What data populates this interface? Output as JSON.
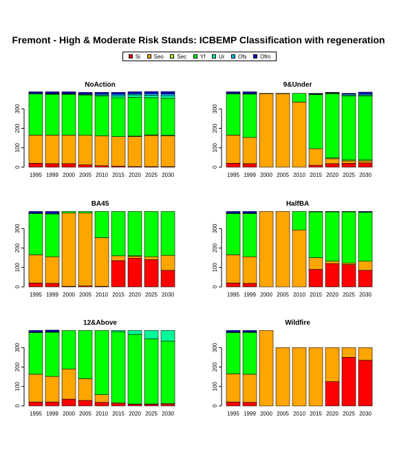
{
  "title": "Fremont  - High & Moderate Risk Stands: ICBEMP Classification with regeneration",
  "legend": [
    {
      "label": "Si",
      "color": "#ff0000"
    },
    {
      "label": "Seo",
      "color": "#ffa500"
    },
    {
      "label": "Sec",
      "color": "#adff2f"
    },
    {
      "label": "Yf",
      "color": "#00ff00"
    },
    {
      "label": "Ur",
      "color": "#00fa9a"
    },
    {
      "label": "Ofs",
      "color": "#00bfff"
    },
    {
      "label": "Ofm",
      "color": "#0000cd"
    }
  ],
  "chart_data": [
    {
      "type": "bar",
      "stacked": true,
      "title": "NoAction",
      "categories": [
        "1995",
        "1999",
        "2000",
        "2005",
        "2010",
        "2015",
        "2020",
        "2025",
        "2030"
      ],
      "yticks": [
        0,
        100,
        200,
        300
      ],
      "ylim": [
        0,
        400
      ],
      "series": [
        {
          "name": "Si",
          "values": [
            20,
            18,
            18,
            12,
            8,
            5,
            3,
            3,
            3
          ]
        },
        {
          "name": "Seo",
          "values": [
            145,
            147,
            147,
            152,
            153,
            152,
            155,
            160,
            158
          ]
        },
        {
          "name": "Sec",
          "values": [
            0,
            0,
            0,
            0,
            0,
            0,
            2,
            3,
            3
          ]
        },
        {
          "name": "Yf",
          "values": [
            212,
            210,
            210,
            207,
            205,
            200,
            200,
            192,
            190
          ]
        },
        {
          "name": "Ur",
          "values": [
            0,
            2,
            2,
            2,
            5,
            10,
            12,
            12,
            14
          ]
        },
        {
          "name": "Ofs",
          "values": [
            3,
            2,
            2,
            3,
            5,
            8,
            6,
            8,
            9
          ]
        },
        {
          "name": "Ofm",
          "values": [
            8,
            9,
            9,
            9,
            9,
            10,
            10,
            11,
            12
          ]
        }
      ]
    },
    {
      "type": "bar",
      "stacked": true,
      "title": "9&Under",
      "categories": [
        "1995",
        "1999",
        "2000",
        "2005",
        "2010",
        "2015",
        "2020",
        "2025",
        "2030"
      ],
      "yticks": [
        0,
        100,
        200,
        300
      ],
      "ylim": [
        0,
        400
      ],
      "series": [
        {
          "name": "Si",
          "values": [
            20,
            18,
            0,
            0,
            0,
            10,
            18,
            20,
            22
          ]
        },
        {
          "name": "Seo",
          "values": [
            145,
            135,
            378,
            378,
            335,
            85,
            25,
            12,
            10
          ]
        },
        {
          "name": "Sec",
          "values": [
            0,
            0,
            0,
            0,
            0,
            0,
            5,
            5,
            5
          ]
        },
        {
          "name": "Yf",
          "values": [
            212,
            223,
            2,
            2,
            45,
            278,
            330,
            330,
            330
          ]
        },
        {
          "name": "Ur",
          "values": [
            0,
            0,
            0,
            0,
            0,
            2,
            2,
            4,
            4
          ]
        },
        {
          "name": "Ofs",
          "values": [
            3,
            3,
            0,
            0,
            0,
            3,
            3,
            5,
            5
          ]
        },
        {
          "name": "Ofm",
          "values": [
            8,
            9,
            0,
            0,
            0,
            2,
            2,
            4,
            10
          ]
        }
      ]
    },
    {
      "type": "bar",
      "stacked": true,
      "title": "BA45",
      "categories": [
        "1995",
        "1999",
        "2000",
        "2005",
        "2010",
        "2015",
        "2020",
        "2025",
        "2030"
      ],
      "yticks": [
        0,
        100,
        200,
        300
      ],
      "ylim": [
        0,
        400
      ],
      "series": [
        {
          "name": "Si",
          "values": [
            20,
            18,
            3,
            5,
            3,
            135,
            148,
            140,
            85
          ]
        },
        {
          "name": "Seo",
          "values": [
            145,
            137,
            377,
            375,
            250,
            25,
            10,
            15,
            77
          ]
        },
        {
          "name": "Sec",
          "values": [
            0,
            0,
            0,
            0,
            0,
            0,
            2,
            0,
            0
          ]
        },
        {
          "name": "Yf",
          "values": [
            212,
            220,
            8,
            8,
            135,
            228,
            228,
            233,
            226
          ]
        },
        {
          "name": "Ur",
          "values": [
            0,
            0,
            0,
            0,
            0,
            0,
            0,
            0,
            0
          ]
        },
        {
          "name": "Ofs",
          "values": [
            3,
            3,
            0,
            0,
            0,
            0,
            0,
            0,
            0
          ]
        },
        {
          "name": "Ofm",
          "values": [
            8,
            10,
            0,
            0,
            0,
            0,
            0,
            0,
            0
          ]
        }
      ]
    },
    {
      "type": "bar",
      "stacked": true,
      "title": "HalfBA",
      "categories": [
        "1995",
        "1999",
        "2000",
        "2005",
        "2010",
        "2015",
        "2020",
        "2025",
        "2030"
      ],
      "yticks": [
        0,
        100,
        200,
        300
      ],
      "ylim": [
        0,
        400
      ],
      "series": [
        {
          "name": "Si",
          "values": [
            20,
            18,
            0,
            0,
            0,
            90,
            120,
            115,
            85
          ]
        },
        {
          "name": "Seo",
          "values": [
            145,
            137,
            388,
            388,
            293,
            60,
            12,
            8,
            47
          ]
        },
        {
          "name": "Sec",
          "values": [
            0,
            0,
            0,
            0,
            0,
            0,
            0,
            0,
            0
          ]
        },
        {
          "name": "Yf",
          "values": [
            212,
            222,
            0,
            0,
            95,
            236,
            254,
            263,
            252
          ]
        },
        {
          "name": "Ur",
          "values": [
            0,
            0,
            0,
            0,
            0,
            0,
            0,
            0,
            0
          ]
        },
        {
          "name": "Ofs",
          "values": [
            3,
            3,
            0,
            0,
            0,
            0,
            0,
            0,
            0
          ]
        },
        {
          "name": "Ofm",
          "values": [
            8,
            8,
            0,
            0,
            0,
            2,
            2,
            2,
            4
          ]
        }
      ]
    },
    {
      "type": "bar",
      "stacked": true,
      "title": "12&Above",
      "categories": [
        "1995",
        "1999",
        "2000",
        "2005",
        "2010",
        "2015",
        "2020",
        "2025",
        "2030"
      ],
      "yticks": [
        0,
        100,
        200,
        300
      ],
      "ylim": [
        0,
        400
      ],
      "series": [
        {
          "name": "Si",
          "values": [
            20,
            20,
            35,
            28,
            18,
            12,
            8,
            8,
            8
          ]
        },
        {
          "name": "Seo",
          "values": [
            143,
            132,
            155,
            112,
            40,
            5,
            2,
            2,
            5
          ]
        },
        {
          "name": "Sec",
          "values": [
            0,
            0,
            0,
            0,
            0,
            0,
            0,
            0,
            0
          ]
        },
        {
          "name": "Yf",
          "values": [
            214,
            227,
            198,
            248,
            330,
            365,
            358,
            335,
            320
          ]
        },
        {
          "name": "Ur",
          "values": [
            0,
            0,
            0,
            0,
            0,
            6,
            20,
            43,
            55
          ]
        },
        {
          "name": "Ofs",
          "values": [
            3,
            3,
            0,
            0,
            0,
            0,
            0,
            0,
            0
          ]
        },
        {
          "name": "Ofm",
          "values": [
            8,
            8,
            0,
            0,
            0,
            0,
            0,
            0,
            0
          ]
        }
      ]
    },
    {
      "type": "bar",
      "stacked": true,
      "title": "Wildfire",
      "categories": [
        "1995",
        "1999",
        "2000",
        "2005",
        "2010",
        "2015",
        "2020",
        "2025",
        "2030"
      ],
      "yticks": [
        0,
        100,
        200,
        300
      ],
      "ylim": [
        0,
        400
      ],
      "series": [
        {
          "name": "Si",
          "values": [
            20,
            18,
            0,
            0,
            0,
            0,
            125,
            250,
            235
          ]
        },
        {
          "name": "Seo",
          "values": [
            145,
            145,
            388,
            300,
            300,
            300,
            175,
            50,
            65
          ]
        },
        {
          "name": "Sec",
          "values": [
            0,
            0,
            0,
            0,
            0,
            0,
            0,
            0,
            0
          ]
        },
        {
          "name": "Yf",
          "values": [
            212,
            215,
            0,
            0,
            0,
            0,
            0,
            0,
            0
          ]
        },
        {
          "name": "Ur",
          "values": [
            0,
            0,
            0,
            0,
            0,
            0,
            0,
            0,
            0
          ]
        },
        {
          "name": "Ofs",
          "values": [
            3,
            2,
            0,
            0,
            0,
            0,
            0,
            0,
            0
          ]
        },
        {
          "name": "Ofm",
          "values": [
            8,
            8,
            0,
            0,
            0,
            0,
            0,
            0,
            0
          ]
        }
      ]
    }
  ]
}
